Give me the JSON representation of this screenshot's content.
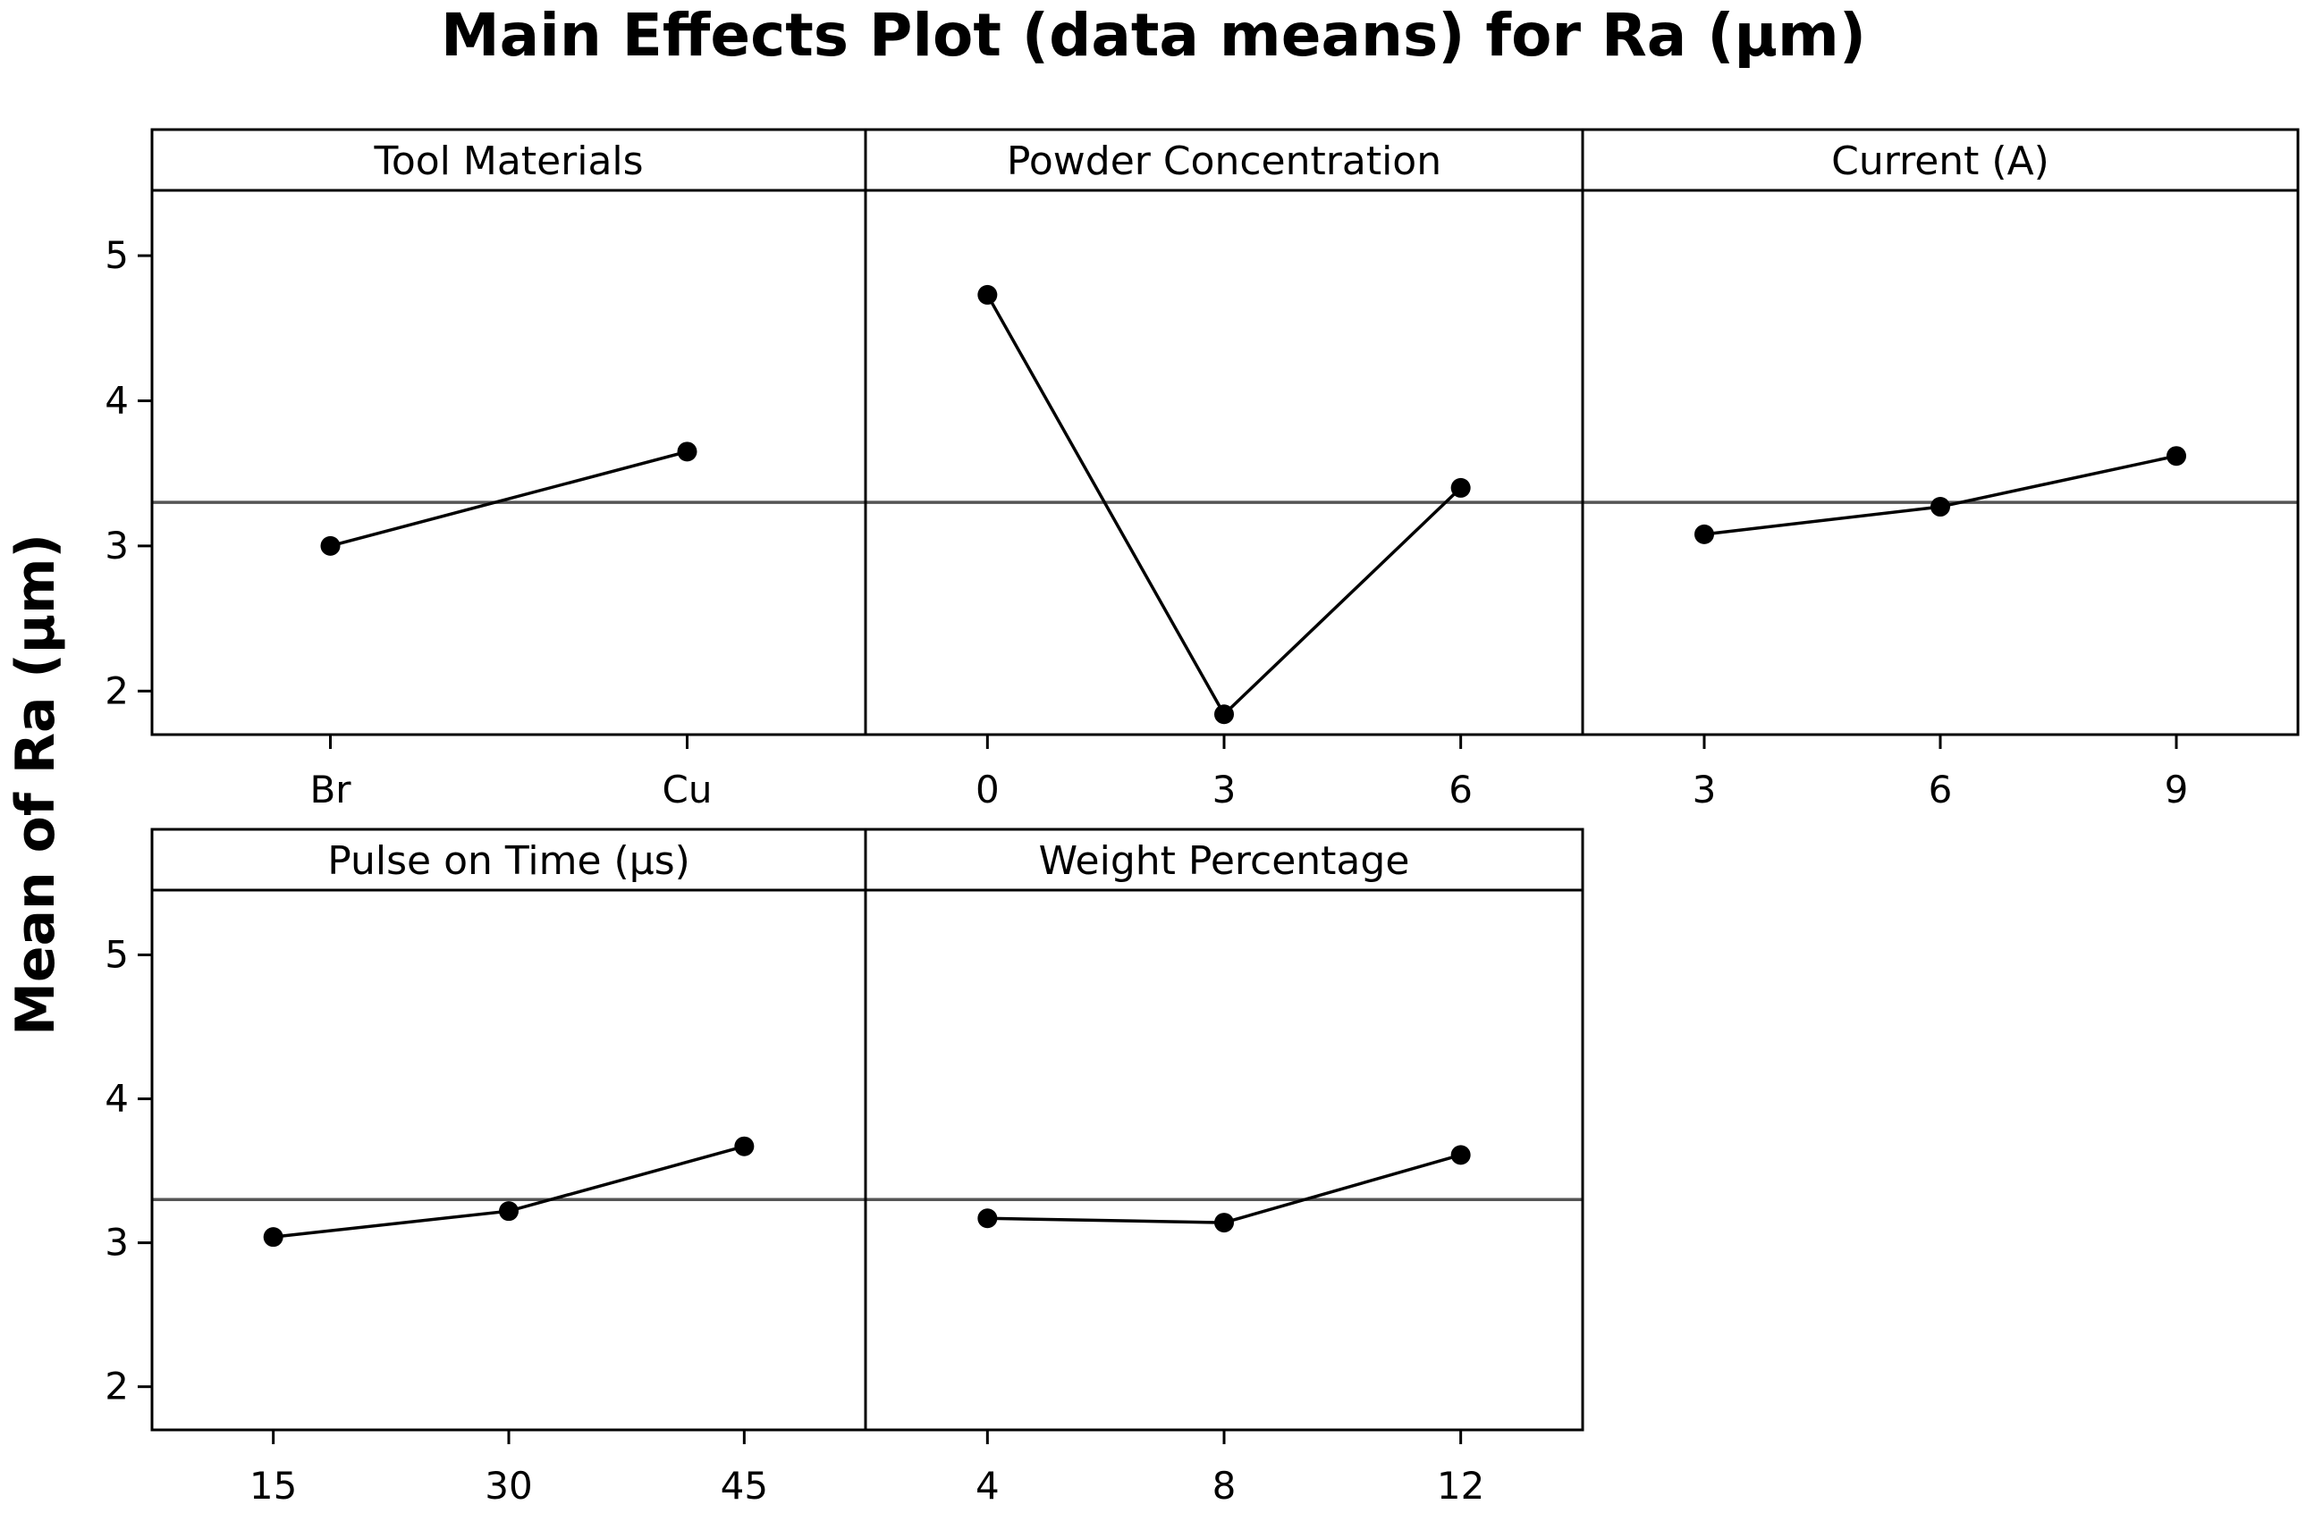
{
  "chart_data": {
    "type": "line",
    "title": "Main Effects Plot (data means) for Ra (µm)",
    "ylabel": "Mean of Ra (µm)",
    "ylim": [
      1.7,
      5.45
    ],
    "y_ticks": [
      "2",
      "3",
      "4",
      "5"
    ],
    "grand_mean": 3.3,
    "grid": false,
    "panels": [
      {
        "name": "Tool Materials",
        "categories": [
          "Br",
          "Cu"
        ],
        "values": [
          3.0,
          3.65
        ]
      },
      {
        "name": "Powder Concentration",
        "categories": [
          "0",
          "3",
          "6"
        ],
        "values": [
          4.73,
          1.84,
          3.4
        ]
      },
      {
        "name": "Current (A)",
        "categories": [
          "3",
          "6",
          "9"
        ],
        "values": [
          3.08,
          3.27,
          3.62
        ]
      },
      {
        "name": "Pulse on Time (µs)",
        "categories": [
          "15",
          "30",
          "45"
        ],
        "values": [
          3.04,
          3.22,
          3.67
        ]
      },
      {
        "name": "Weight Percentage",
        "categories": [
          "4",
          "8",
          "12"
        ],
        "values": [
          3.17,
          3.14,
          3.61
        ]
      }
    ]
  }
}
